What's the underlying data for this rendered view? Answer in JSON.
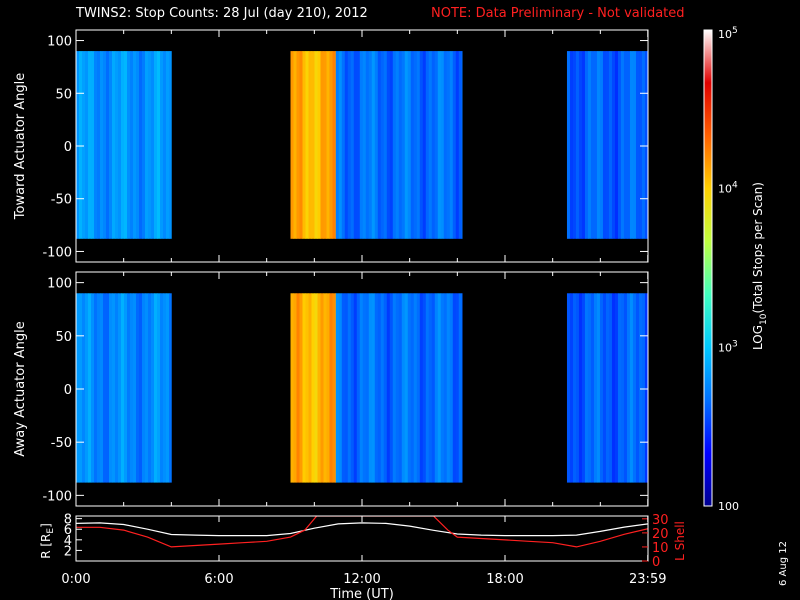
{
  "title": {
    "main": "TWINS2: Stop Counts: 28 Jul (day 210), 2012",
    "note": "NOTE: Data Preliminary - Not validated",
    "note_color": "#ff2020"
  },
  "date_stamp": "6 Aug 12",
  "chart_data": [
    {
      "type": "heatmap",
      "name": "toward-panel",
      "ylabel": "Toward Actuator Angle",
      "ylim": [
        -110,
        110
      ],
      "yticks": [
        100,
        50,
        0,
        -50,
        -100
      ],
      "ytick_labels": [
        "100",
        "50",
        "0",
        "-50",
        "-100"
      ],
      "xlim": [
        0,
        24
      ],
      "data_angle_range": [
        -88,
        90
      ],
      "data_segments_hours": [
        {
          "start": 0.0,
          "end": 4.0,
          "level": 2.9
        },
        {
          "start": 9.0,
          "end": 10.9,
          "level": 4.35
        },
        {
          "start": 10.9,
          "end": 16.2,
          "level": 2.75
        },
        {
          "start": 20.6,
          "end": 23.99,
          "level": 2.7
        }
      ]
    },
    {
      "type": "heatmap",
      "name": "away-panel",
      "ylabel": "Away Actuator Angle",
      "ylim": [
        -110,
        110
      ],
      "yticks": [
        100,
        50,
        0,
        -50,
        -100
      ],
      "ytick_labels": [
        "100",
        "50",
        "0",
        "-50",
        "-100"
      ],
      "xlim": [
        0,
        24
      ],
      "data_angle_range": [
        -88,
        90
      ],
      "data_segments_hours": [
        {
          "start": 0.0,
          "end": 4.0,
          "level": 2.85
        },
        {
          "start": 9.0,
          "end": 10.9,
          "level": 4.35
        },
        {
          "start": 10.9,
          "end": 16.2,
          "level": 2.75
        },
        {
          "start": 20.6,
          "end": 23.99,
          "level": 2.7
        }
      ]
    },
    {
      "type": "line",
      "name": "orbit-panel",
      "ylabel_left": "R [R",
      "ylabel_left_sub": "E",
      "ylabel_left_end": "]",
      "ylabel_right": "L Shell",
      "ylim_left": [
        0,
        8.5
      ],
      "ylim_right": [
        0,
        32
      ],
      "yticks_left": [
        2,
        4,
        6,
        8
      ],
      "ytick_labels_left": [
        "2",
        "4",
        "6",
        "8"
      ],
      "yticks_right": [
        0,
        10,
        20,
        30
      ],
      "ytick_labels_right": [
        "0",
        "10",
        "20",
        "30"
      ],
      "xlabel": "Time (UT)",
      "xticks": [
        0,
        6,
        12,
        18,
        24
      ],
      "xtick_labels": [
        "0:00",
        "6:00",
        "12:00",
        "18:00",
        "23:59"
      ],
      "xlim": [
        0,
        24
      ],
      "series": [
        {
          "axis": "left",
          "color": "#ffffff",
          "x": [
            0,
            1,
            2,
            3,
            4,
            5,
            6,
            7,
            8,
            9,
            10,
            11,
            12,
            13,
            14,
            15,
            16,
            17,
            18,
            19,
            20,
            21,
            22,
            23,
            24
          ],
          "y": [
            7.1,
            7.2,
            6.9,
            6.0,
            5.0,
            4.9,
            4.8,
            4.8,
            4.8,
            5.2,
            6.2,
            7.0,
            7.2,
            7.1,
            6.6,
            5.8,
            5.1,
            4.9,
            4.8,
            4.8,
            4.8,
            4.9,
            5.6,
            6.4,
            7.0
          ]
        },
        {
          "axis": "right",
          "color": "#ff2020",
          "x": [
            0,
            1,
            2,
            3,
            4,
            5,
            6,
            7,
            8,
            9,
            9.6,
            10.1,
            15.0,
            15.6,
            16,
            17,
            18,
            19,
            20,
            21,
            22,
            23,
            24
          ],
          "y": [
            24,
            24,
            22,
            17,
            10,
            11,
            12,
            13,
            14,
            17,
            22,
            32,
            32,
            22,
            17,
            16,
            15,
            14,
            13,
            10,
            14,
            19,
            23
          ]
        }
      ]
    }
  ],
  "colorbar": {
    "label": "LOG",
    "label_sub": "10",
    "label_end": "(Total Stops per Scan)",
    "scale": "log",
    "range": [
      100,
      100000
    ],
    "tick_labels": [
      {
        "value": 100000,
        "base": "10",
        "exp": "5"
      },
      {
        "value": 10000,
        "base": "10",
        "exp": "4"
      },
      {
        "value": 1000,
        "base": "10",
        "exp": "3"
      },
      {
        "value": 100,
        "base": "100",
        "exp": ""
      }
    ],
    "colors": [
      "#000090",
      "#0000ff",
      "#0070ff",
      "#00c8ff",
      "#40ffbf",
      "#c0ff40",
      "#ffd000",
      "#ff6000",
      "#e00000",
      "#ffffff"
    ]
  }
}
